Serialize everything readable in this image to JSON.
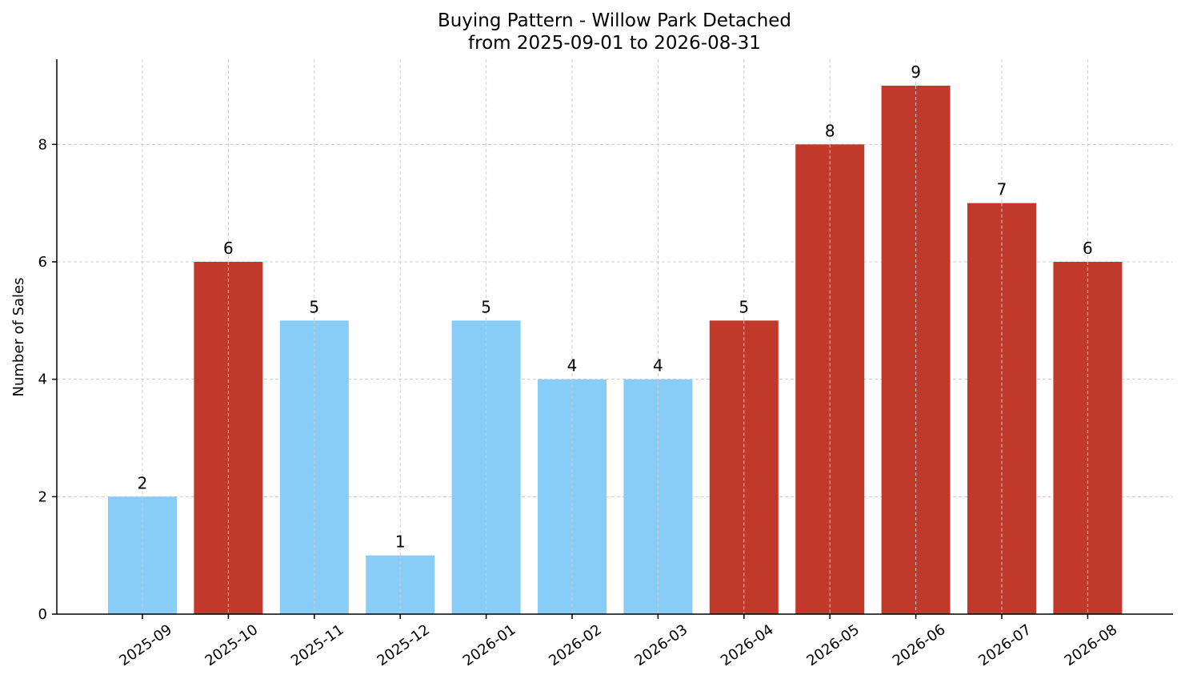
{
  "chart_data": {
    "type": "bar",
    "title": "Buying Pattern - Willow Park Detached",
    "subtitle": "from 2025-09-01 to 2026-08-31",
    "xlabel": "",
    "ylabel": "Number of Sales",
    "categories": [
      "2025-09",
      "2025-10",
      "2025-11",
      "2025-12",
      "2026-01",
      "2026-02",
      "2026-03",
      "2026-04",
      "2026-05",
      "2026-06",
      "2026-07",
      "2026-08"
    ],
    "values": [
      2,
      6,
      5,
      1,
      5,
      4,
      4,
      5,
      8,
      9,
      7,
      6
    ],
    "bar_colors": [
      "#87cdf7",
      "#c0392b",
      "#87cdf7",
      "#87cdf7",
      "#87cdf7",
      "#87cdf7",
      "#87cdf7",
      "#c0392b",
      "#c0392b",
      "#c0392b",
      "#c0392b",
      "#c0392b"
    ],
    "ylim": [
      0,
      9.45
    ],
    "yticks": [
      0,
      2,
      4,
      6,
      8
    ],
    "grid": true
  }
}
